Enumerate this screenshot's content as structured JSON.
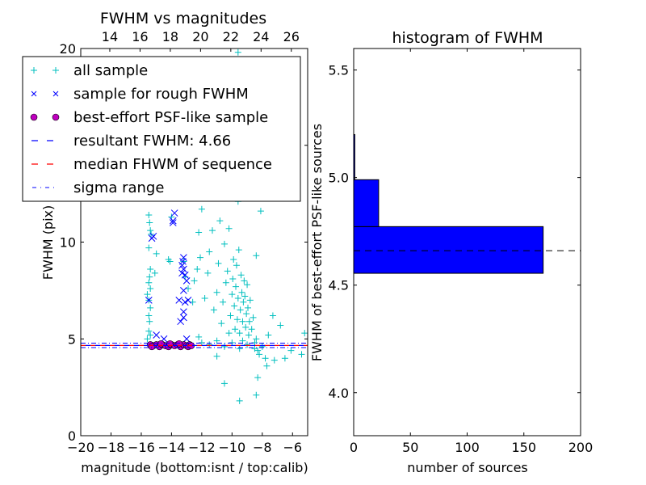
{
  "chart_data": [
    {
      "type": "scatter",
      "title": "FWHM vs magnitudes",
      "xlabel": "magnitude (bottom:isnt / top:calib)",
      "ylabel": "FWHM (pix)",
      "xlim": [
        -20,
        -5
      ],
      "ylim": [
        0,
        20
      ],
      "top_xlim": [
        12.08,
        27.08
      ],
      "xticks": [
        -20,
        -18,
        -16,
        -14,
        -12,
        -10,
        -8,
        -6
      ],
      "xtick_labels": [
        "−20",
        "−18",
        "−16",
        "−14",
        "−12",
        "−10",
        "−8",
        "−6"
      ],
      "top_xticks": [
        14,
        16,
        18,
        20,
        22,
        24,
        26
      ],
      "top_xtick_labels": [
        "14",
        "16",
        "18",
        "20",
        "22",
        "24",
        "26"
      ],
      "yticks": [
        0,
        5,
        10,
        15,
        20
      ],
      "ytick_labels": [
        "0",
        "5",
        "10",
        "15",
        "20"
      ],
      "legend_position": "top-left",
      "legend": [
        {
          "label": "all sample",
          "marker": "+",
          "color": "#00BFBF"
        },
        {
          "label": "sample for rough FWHM",
          "marker": "x",
          "color": "#0000FF"
        },
        {
          "label": "best-effort PSF-like sample",
          "marker": "o",
          "color": "#BF00BF"
        },
        {
          "label": "resultant FWHM: 4.66",
          "line": "dashed",
          "color": "#0000FF"
        },
        {
          "label": "median FHWM of sequence",
          "line": "dashed",
          "color": "#FF0000"
        },
        {
          "label": "sigma range",
          "line": "dashdot",
          "color": "#0000FF"
        }
      ],
      "hlines": {
        "resultant": 4.66,
        "median": 4.66,
        "sigma_low": 4.55,
        "sigma_high": 4.78
      },
      "series": [
        {
          "name": "all sample",
          "points": [
            [
              -15.5,
              11.4
            ],
            [
              -15.45,
              11.0
            ],
            [
              -15.4,
              10.6
            ],
            [
              -15.35,
              10.4
            ],
            [
              -15.5,
              9.7
            ],
            [
              -15.4,
              8.6
            ],
            [
              -15.45,
              8.2
            ],
            [
              -15.5,
              7.9
            ],
            [
              -15.4,
              7.6
            ],
            [
              -15.6,
              7.3
            ],
            [
              -15.5,
              7.0
            ],
            [
              -15.4,
              6.6
            ],
            [
              -15.5,
              6.2
            ],
            [
              -15.45,
              5.9
            ],
            [
              -15.5,
              5.4
            ],
            [
              -15.4,
              5.2
            ],
            [
              -15.6,
              5.0
            ],
            [
              -15.0,
              9.4
            ],
            [
              -15.1,
              8.4
            ],
            [
              -14.2,
              9.1
            ],
            [
              -14.1,
              9.0
            ],
            [
              -14.0,
              11.3
            ],
            [
              -13.2,
              9.0
            ],
            [
              -13.1,
              8.2
            ],
            [
              -12.9,
              7.6
            ],
            [
              -12.6,
              6.9
            ],
            [
              -12.5,
              8.0
            ],
            [
              -12.3,
              8.6
            ],
            [
              -12.1,
              9.2
            ],
            [
              -12.2,
              10.5
            ],
            [
              -12.0,
              11.7
            ],
            [
              -11.8,
              7.1
            ],
            [
              -11.6,
              8.4
            ],
            [
              -11.5,
              9.5
            ],
            [
              -11.3,
              10.6
            ],
            [
              -11.2,
              6.5
            ],
            [
              -11.0,
              7.4
            ],
            [
              -10.9,
              8.9
            ],
            [
              -10.8,
              11.1
            ],
            [
              -10.7,
              5.8
            ],
            [
              -10.6,
              6.9
            ],
            [
              -10.5,
              9.9
            ],
            [
              -10.4,
              7.9
            ],
            [
              -10.3,
              8.5
            ],
            [
              -10.2,
              10.7
            ],
            [
              -10.1,
              6.2
            ],
            [
              -10.0,
              7.3
            ],
            [
              -9.95,
              8.1
            ],
            [
              -9.9,
              9.1
            ],
            [
              -9.85,
              6.7
            ],
            [
              -9.8,
              5.5
            ],
            [
              -9.75,
              7.7
            ],
            [
              -9.7,
              8.8
            ],
            [
              -9.65,
              6.0
            ],
            [
              -9.6,
              7.1
            ],
            [
              -9.55,
              9.6
            ],
            [
              -9.5,
              5.3
            ],
            [
              -9.45,
              6.5
            ],
            [
              -9.4,
              8.3
            ],
            [
              -9.35,
              7.4
            ],
            [
              -9.3,
              5.9
            ],
            [
              -9.25,
              6.9
            ],
            [
              -9.2,
              8.0
            ],
            [
              -9.15,
              7.2
            ],
            [
              -9.1,
              5.6
            ],
            [
              -9.05,
              6.3
            ],
            [
              -9.0,
              7.8
            ],
            [
              -8.95,
              6.6
            ],
            [
              -8.9,
              5.2
            ],
            [
              -8.85,
              5.9
            ],
            [
              -8.8,
              7.0
            ],
            [
              -8.7,
              5.5
            ],
            [
              -8.6,
              6.1
            ],
            [
              -8.5,
              4.8
            ],
            [
              -8.4,
              5.0
            ],
            [
              -8.3,
              4.4
            ],
            [
              -8.2,
              4.2
            ],
            [
              -8.0,
              4.6
            ],
            [
              -7.8,
              4.0
            ],
            [
              -7.6,
              5.2
            ],
            [
              -7.2,
              3.9
            ],
            [
              -6.5,
              4.0
            ],
            [
              -6.1,
              4.4
            ],
            [
              -5.4,
              4.2
            ],
            [
              -5.2,
              5.3
            ],
            [
              -8.4,
              9.3
            ],
            [
              -8.1,
              11.6
            ],
            [
              -7.3,
              6.2
            ],
            [
              -6.8,
              5.7
            ],
            [
              -11.0,
              4.1
            ],
            [
              -10.5,
              2.7
            ],
            [
              -9.5,
              1.8
            ],
            [
              -8.4,
              2.1
            ],
            [
              -8.3,
              3.0
            ],
            [
              -7.7,
              3.6
            ],
            [
              -12.0,
              4.8
            ],
            [
              -11.5,
              4.7
            ],
            [
              -11.0,
              4.9
            ],
            [
              -10.5,
              4.6
            ],
            [
              -10.0,
              4.8
            ],
            [
              -9.5,
              4.5
            ],
            [
              -9.0,
              4.7
            ],
            [
              -8.5,
              4.5
            ],
            [
              -12.2,
              5.1
            ],
            [
              -10.2,
              5.3
            ],
            [
              -9.3,
              4.9
            ],
            [
              -9.6,
              19.8
            ],
            [
              -9.1,
              19.3
            ],
            [
              -10.0,
              13.5
            ],
            [
              -9.3,
              12.8
            ],
            [
              -10.6,
              12.3
            ],
            [
              -9.6,
              12.1
            ]
          ]
        },
        {
          "name": "sample for rough FWHM",
          "points": [
            [
              -15.2,
              10.3
            ],
            [
              -15.3,
              10.2
            ],
            [
              -13.9,
              11.1
            ],
            [
              -13.9,
              11.0
            ],
            [
              -13.8,
              11.5
            ],
            [
              -13.5,
              7.0
            ],
            [
              -15.5,
              7.0
            ],
            [
              -13.2,
              9.2
            ],
            [
              -13.25,
              9.0
            ],
            [
              -13.3,
              8.8
            ],
            [
              -13.2,
              8.6
            ],
            [
              -13.3,
              8.4
            ],
            [
              -13.1,
              8.3
            ],
            [
              -13.0,
              8.0
            ],
            [
              -13.2,
              7.5
            ],
            [
              -13.1,
              6.9
            ],
            [
              -12.9,
              7.0
            ],
            [
              -13.2,
              6.4
            ],
            [
              -13.2,
              6.1
            ],
            [
              -13.4,
              5.9
            ],
            [
              -14.5,
              5.0
            ],
            [
              -15.0,
              5.2
            ],
            [
              -13.0,
              5.0
            ]
          ]
        },
        {
          "name": "best-effort PSF-like sample",
          "points": [
            [
              -15.4,
              4.7
            ],
            [
              -15.2,
              4.65
            ],
            [
              -15.0,
              4.7
            ],
            [
              -14.8,
              4.6
            ],
            [
              -14.6,
              4.7
            ],
            [
              -14.4,
              4.65
            ],
            [
              -14.2,
              4.6
            ],
            [
              -14.0,
              4.7
            ],
            [
              -13.8,
              4.65
            ],
            [
              -13.6,
              4.7
            ],
            [
              -13.4,
              4.6
            ],
            [
              -13.2,
              4.7
            ],
            [
              -13.0,
              4.65
            ],
            [
              -12.8,
              4.7
            ],
            [
              -15.3,
              4.6
            ],
            [
              -14.7,
              4.75
            ],
            [
              -14.1,
              4.75
            ],
            [
              -13.5,
              4.75
            ],
            [
              -12.9,
              4.6
            ],
            [
              -12.7,
              4.65
            ]
          ]
        }
      ]
    },
    {
      "type": "bar",
      "orientation": "horizontal",
      "title": "histogram of FWHM",
      "xlabel": "number of sources",
      "ylabel": "FWHM of best-effort PSF-like sources",
      "xlim": [
        0,
        200
      ],
      "ylim": [
        3.8,
        5.6
      ],
      "xticks": [
        0,
        50,
        100,
        150,
        200
      ],
      "xtick_labels": [
        "0",
        "50",
        "100",
        "150",
        "200"
      ],
      "yticks": [
        4.0,
        4.5,
        5.0,
        5.5
      ],
      "ytick_labels": [
        "4.0",
        "4.5",
        "5.0",
        "5.5"
      ],
      "bins": [
        {
          "low": 4.555,
          "high": 4.772,
          "count": 167
        },
        {
          "low": 4.772,
          "high": 4.99,
          "count": 22
        },
        {
          "low": 4.99,
          "high": 5.2,
          "count": 1
        }
      ],
      "bar_color": "#0000FF",
      "hline": 4.66
    }
  ]
}
